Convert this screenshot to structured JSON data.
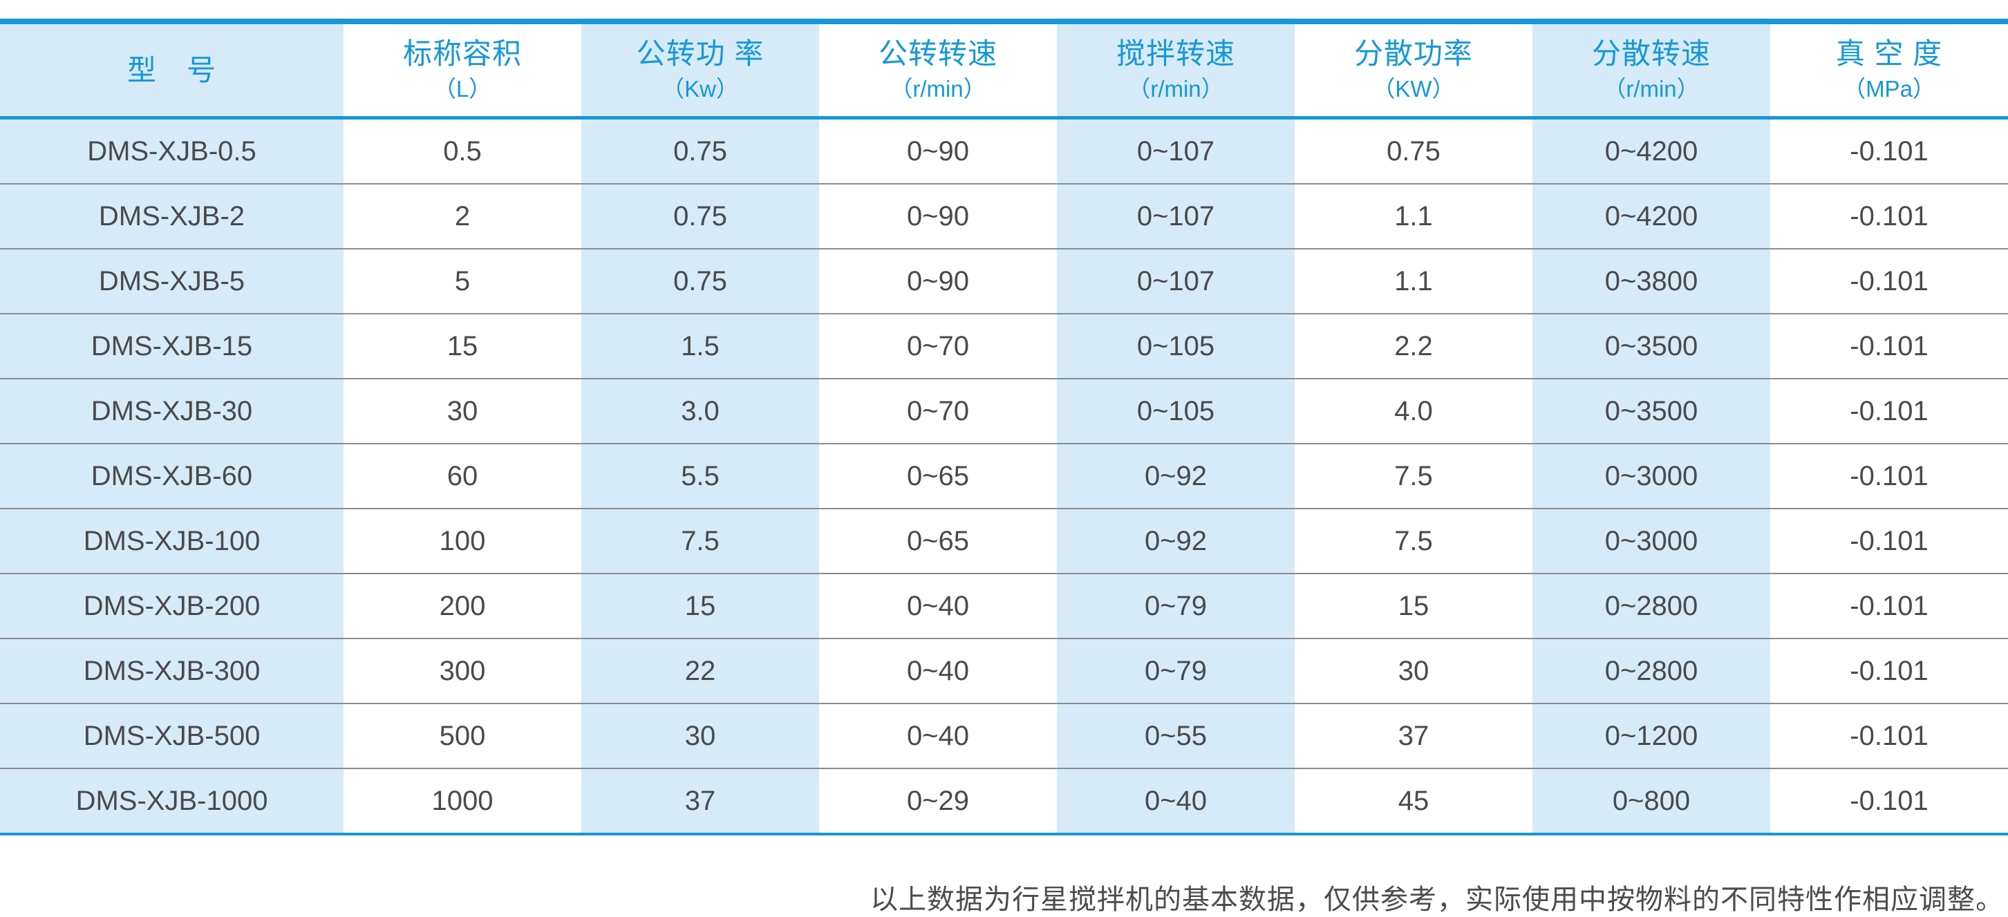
{
  "table": {
    "columns": [
      {
        "label": "型　号",
        "unit": ""
      },
      {
        "label": "标称容积",
        "unit": "（L）"
      },
      {
        "label": "公转功 率",
        "unit": "（Kw）"
      },
      {
        "label": "公转转速",
        "unit": "（r/min）"
      },
      {
        "label": "搅拌转速",
        "unit": "（r/min）"
      },
      {
        "label": "分散功率",
        "unit": "（KW）"
      },
      {
        "label": "分散转速",
        "unit": "（r/min）"
      },
      {
        "label": "真 空 度",
        "unit": "（MPa）"
      }
    ],
    "rows": [
      [
        "DMS-XJB-0.5",
        "0.5",
        "0.75",
        "0~90",
        "0~107",
        "0.75",
        "0~4200",
        "-0.101"
      ],
      [
        "DMS-XJB-2",
        "2",
        "0.75",
        "0~90",
        "0~107",
        "1.1",
        "0~4200",
        "-0.101"
      ],
      [
        "DMS-XJB-5",
        "5",
        "0.75",
        "0~90",
        "0~107",
        "1.1",
        "0~3800",
        "-0.101"
      ],
      [
        "DMS-XJB-15",
        "15",
        "1.5",
        "0~70",
        "0~105",
        "2.2",
        "0~3500",
        "-0.101"
      ],
      [
        "DMS-XJB-30",
        "30",
        "3.0",
        "0~70",
        "0~105",
        "4.0",
        "0~3500",
        "-0.101"
      ],
      [
        "DMS-XJB-60",
        "60",
        "5.5",
        "0~65",
        "0~92",
        "7.5",
        "0~3000",
        "-0.101"
      ],
      [
        "DMS-XJB-100",
        "100",
        "7.5",
        "0~65",
        "0~92",
        "7.5",
        "0~3000",
        "-0.101"
      ],
      [
        "DMS-XJB-200",
        "200",
        "15",
        "0~40",
        "0~79",
        "15",
        "0~2800",
        "-0.101"
      ],
      [
        "DMS-XJB-300",
        "300",
        "22",
        "0~40",
        "0~79",
        "30",
        "0~2800",
        "-0.101"
      ],
      [
        "DMS-XJB-500",
        "500",
        "30",
        "0~40",
        "0~55",
        "37",
        "0~1200",
        "-0.101"
      ],
      [
        "DMS-XJB-1000",
        "1000",
        "37",
        "0~29",
        "0~40",
        "45",
        "0~800",
        "-0.101"
      ]
    ]
  },
  "footnote": {
    "text": "以上数据为行星搅拌机的基本数据，仅供参考，实际使用中按物料的不同特性作相应调整。"
  },
  "colors": {
    "accent_blue": "#1598d8",
    "shaded_column_bg": "#d7eaf8",
    "body_text": "#4a4a4a",
    "row_separator": "#8c8c8c"
  }
}
